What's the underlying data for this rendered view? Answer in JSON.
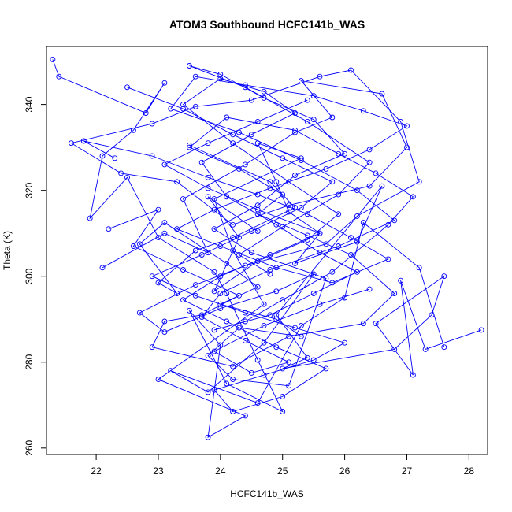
{
  "chart_data": {
    "type": "line",
    "title": "ATOM3 Southbound HCFC141b_WAS",
    "xlabel": "HCFC141b_WAS",
    "ylabel": "Theta (K)",
    "xlim": [
      21.2,
      28.3
    ],
    "ylim": [
      258.5,
      353.5
    ],
    "xticks": [
      22,
      23,
      24,
      25,
      26,
      27,
      28
    ],
    "yticks": [
      260,
      280,
      300,
      320,
      340
    ],
    "markers": "open-circle",
    "series_color": "#0000ff",
    "grid": false,
    "series": [
      {
        "x": [
          21.3,
          21.4,
          22.8,
          23.1,
          22.6,
          22.1,
          21.9,
          22.5,
          23.0,
          23.9,
          24.1,
          24.6,
          25.0,
          24.1,
          23.5,
          24.0,
          23.8,
          24.4,
          23.0,
          24.7,
          24.2,
          23.9,
          25.3,
          24.6,
          24.9,
          25.1,
          25.6,
          25.2,
          26.2,
          26.6,
          24.9,
          25.4,
          25.0,
          26.8,
          27.4,
          27.6,
          26.5,
          27.1,
          26.9,
          27.3,
          28.2
        ],
        "y": [
          350.5,
          346.5,
          338.0,
          345.0,
          334.0,
          328.0,
          313.5,
          323.0,
          309.0,
          301.0,
          296.0,
          280.5,
          268.5,
          275.0,
          292.0,
          284.0,
          262.5,
          267.5,
          276.0,
          293.5,
          306.0,
          318.0,
          327.5,
          331.0,
          322.0,
          315.0,
          310.0,
          303.0,
          308.0,
          321.0,
          291.0,
          281.0,
          278.5,
          283.0,
          291.0,
          300.0,
          289.0,
          277.0,
          299.0,
          283.0,
          287.5
        ]
      },
      {
        "x": [
          22.1,
          23.1,
          23.8,
          23.4,
          24.4,
          25.2,
          25.8,
          25.3,
          26.6,
          27.0,
          26.4,
          25.1,
          24.2,
          23.3,
          22.4,
          21.6,
          22.9,
          23.6,
          24.5,
          25.6,
          26.1,
          26.9,
          27.2,
          26.2,
          25.7,
          24.4,
          23.6,
          22.7,
          23.1,
          24.0,
          24.9,
          25.5,
          24.7,
          23.8,
          23.2,
          24.6,
          25.3,
          26.0,
          26.3,
          27.2,
          27.6
        ],
        "y": [
          302.0,
          310.0,
          305.5,
          318.0,
          326.0,
          333.5,
          337.0,
          345.5,
          342.5,
          330.0,
          321.0,
          316.5,
          312.0,
          322.0,
          324.0,
          331.0,
          335.5,
          339.5,
          341.0,
          346.5,
          348.0,
          336.0,
          322.0,
          314.0,
          307.5,
          302.5,
          298.0,
          291.5,
          287.0,
          292.5,
          296.5,
          300.5,
          284.5,
          273.0,
          278.0,
          270.5,
          288.5,
          295.0,
          312.5,
          302.0,
          283.5
        ]
      },
      {
        "x": [
          22.2,
          23.0,
          22.6,
          23.4,
          24.3,
          23.7,
          23.1,
          22.9,
          24.2,
          25.1,
          26.3,
          26.8,
          26.1,
          25.4,
          24.6,
          25.0,
          24.3,
          23.5,
          24.1,
          25.2,
          25.9,
          26.5,
          27.1,
          26.7,
          25.8,
          25.0,
          24.4,
          23.9,
          24.8,
          25.5,
          26.2,
          25.6,
          24.9,
          24.1,
          23.7,
          24.5,
          25.2,
          24.7,
          24.0,
          23.4,
          24.2,
          25.1,
          25.9,
          25.4,
          24.6,
          23.9,
          24.3,
          23.8,
          24.6
        ],
        "y": [
          311.0,
          315.5,
          307.0,
          301.5,
          295.5,
          291.0,
          289.5,
          283.5,
          279.0,
          286.0,
          289.0,
          296.0,
          305.0,
          309.5,
          314.5,
          319.0,
          325.0,
          330.0,
          337.0,
          334.0,
          328.5,
          324.0,
          318.5,
          312.0,
          301.0,
          294.5,
          289.5,
          287.5,
          291.0,
          296.0,
          301.0,
          305.5,
          312.0,
          318.5,
          326.5,
          333.0,
          338.0,
          343.0,
          346.0,
          340.0,
          331.0,
          322.0,
          314.5,
          308.5,
          303.5,
          296.5,
          309.0,
          318.5,
          310.5
        ]
      },
      {
        "x": [
          23.5,
          24.8,
          25.2,
          24.2,
          23.6,
          23.0,
          23.3,
          22.7,
          23.1,
          24.1,
          24.6,
          24.0,
          24.9,
          25.3,
          24.3,
          23.8,
          24.2,
          25.1,
          25.7,
          24.5,
          23.9,
          24.6,
          25.2,
          26.0,
          25.5,
          24.7,
          24.0,
          23.5,
          24.4,
          25.4,
          26.4,
          25.9,
          25.0,
          24.3,
          24.8
        ],
        "y": [
          330.5,
          322.0,
          316.0,
          309.0,
          306.0,
          298.5,
          296.0,
          307.5,
          312.5,
          303.0,
          297.5,
          293.5,
          290.0,
          286.0,
          288.0,
          281.5,
          276.0,
          274.5,
          299.5,
          305.5,
          311.0,
          316.5,
          323.5,
          328.5,
          336.5,
          341.5,
          347.0,
          349.0,
          344.0,
          336.0,
          326.5,
          319.0,
          311.5,
          305.0,
          300.5
        ]
      },
      {
        "x": [
          22.3,
          21.8,
          22.9,
          23.8,
          24.6,
          25.4,
          26.1,
          26.7,
          25.8,
          24.9,
          24.0,
          23.3,
          23.9,
          24.8,
          25.7,
          26.4,
          27.0,
          26.3,
          25.5,
          24.4,
          23.6,
          23.2,
          24.3,
          25.3,
          26.2,
          26.8,
          25.9,
          24.8,
          24.0,
          23.7,
          24.4,
          25.1,
          24.5,
          23.9,
          24.7,
          25.6,
          26.4
        ],
        "y": [
          327.5,
          331.5,
          328.0,
          323.0,
          319.0,
          314.5,
          309.0,
          304.0,
          298.5,
          302.0,
          307.0,
          311.0,
          315.5,
          320.5,
          325.0,
          329.5,
          335.0,
          338.5,
          342.0,
          344.5,
          346.5,
          339.0,
          333.5,
          327.0,
          320.0,
          313.0,
          307.0,
          301.5,
          296.0,
          290.5,
          285.0,
          280.0,
          277.5,
          282.5,
          288.5,
          293.5,
          297.0
        ]
      },
      {
        "x": [
          22.5,
          23.4,
          24.2,
          25.0,
          25.8,
          25.3,
          24.5,
          23.7,
          22.9,
          23.6,
          24.4,
          25.2,
          26.0,
          25.5,
          24.7,
          23.9,
          24.2,
          25.0,
          25.7,
          24.9,
          24.1,
          23.4,
          24.0,
          24.8,
          25.6,
          24.6,
          23.8,
          23.1,
          23.8,
          24.6,
          25.4
        ],
        "y": [
          344.0,
          339.0,
          333.0,
          327.5,
          322.0,
          316.0,
          310.5,
          305.0,
          300.0,
          295.5,
          291.5,
          288.0,
          284.5,
          280.5,
          277.0,
          273.5,
          268.5,
          272.0,
          278.5,
          283.5,
          289.5,
          294.5,
          300.0,
          305.0,
          310.0,
          315.5,
          320.5,
          326.0,
          331.0,
          336.0,
          341.0
        ]
      }
    ]
  }
}
